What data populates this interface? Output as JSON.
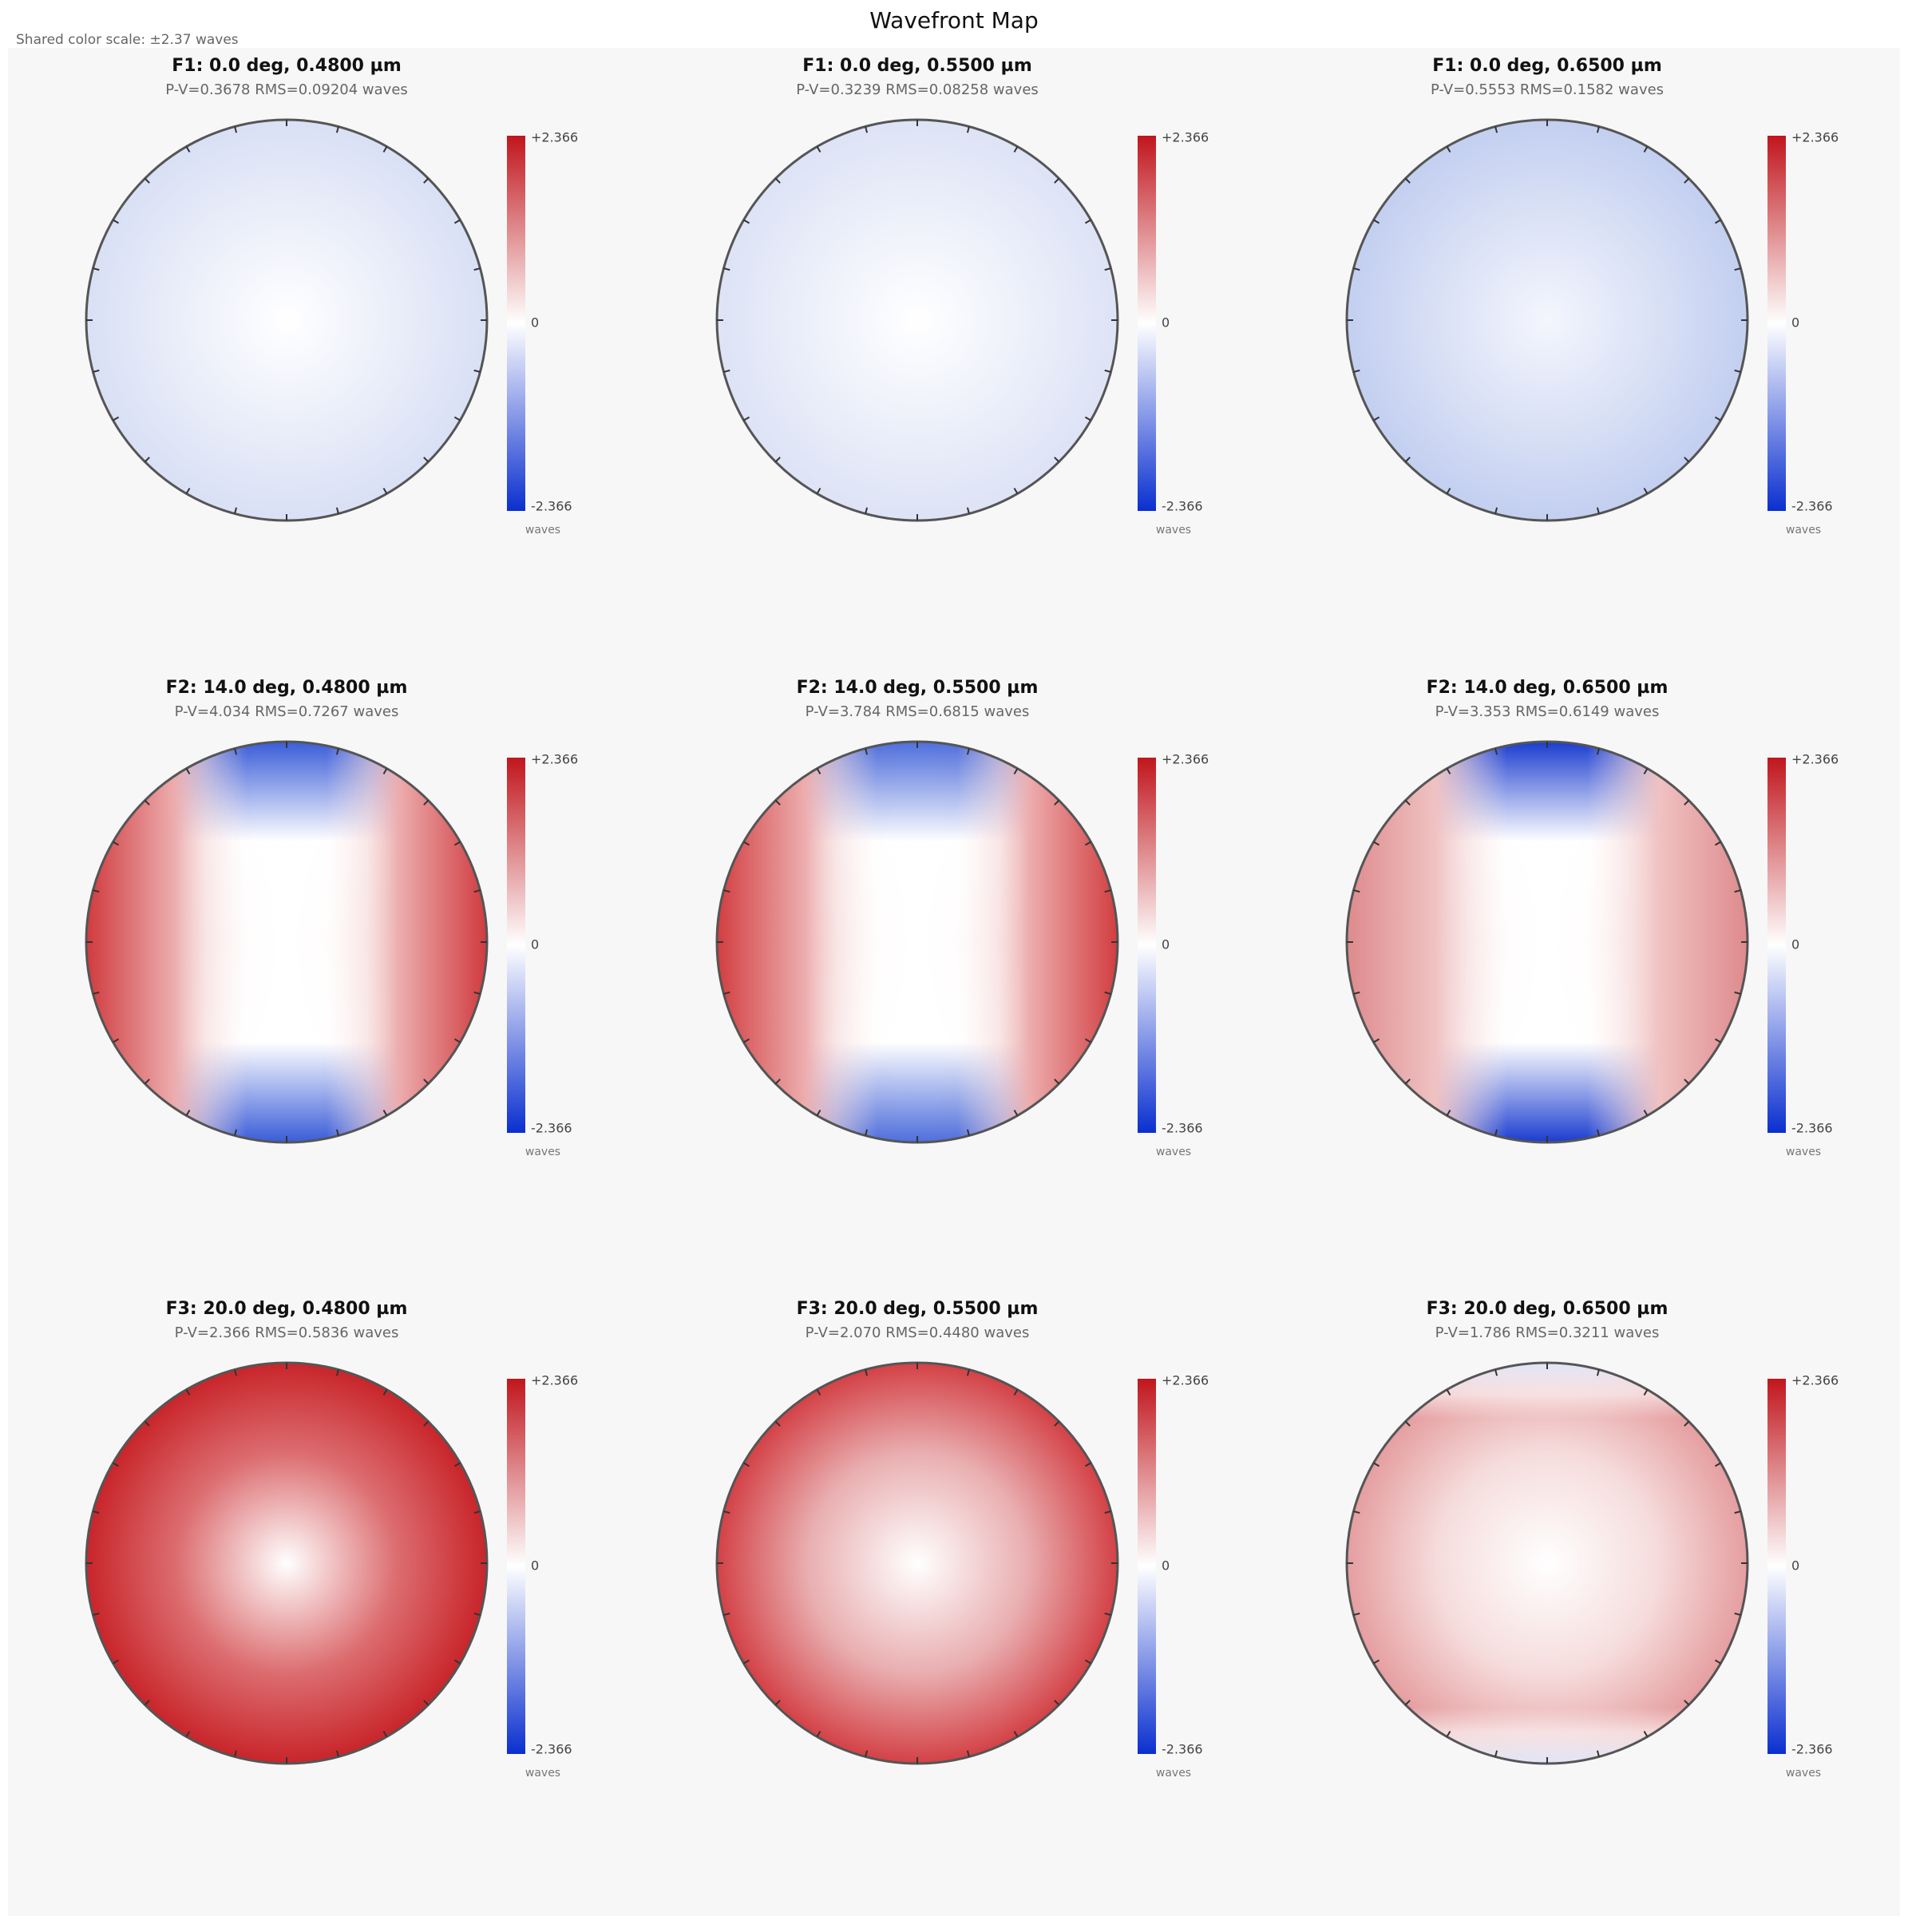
{
  "header": {
    "title": "Wavefront Map",
    "subtitle": "Shared color scale: ±2.37 waves"
  },
  "panels": [
    {
      "title": "F1: 0.0 deg, 0.4800 µm",
      "stats": "P-V=0.3678 RMS=0.09204 waves",
      "colorbar": {
        "max": "+2.366",
        "mid": "0",
        "min": "-2.366",
        "unit": "waves"
      }
    },
    {
      "title": "F1: 0.0 deg, 0.5500 µm",
      "stats": "P-V=0.3239 RMS=0.08258 waves",
      "colorbar": {
        "max": "+2.366",
        "mid": "0",
        "min": "-2.366",
        "unit": "waves"
      }
    },
    {
      "title": "F1: 0.0 deg, 0.6500 µm",
      "stats": "P-V=0.5553 RMS=0.1582 waves",
      "colorbar": {
        "max": "+2.366",
        "mid": "0",
        "min": "-2.366",
        "unit": "waves"
      }
    },
    {
      "title": "F2: 14.0 deg, 0.4800 µm",
      "stats": "P-V=4.034 RMS=0.7267 waves",
      "colorbar": {
        "max": "+2.366",
        "mid": "0",
        "min": "-2.366",
        "unit": "waves"
      }
    },
    {
      "title": "F2: 14.0 deg, 0.5500 µm",
      "stats": "P-V=3.784 RMS=0.6815 waves",
      "colorbar": {
        "max": "+2.366",
        "mid": "0",
        "min": "-2.366",
        "unit": "waves"
      }
    },
    {
      "title": "F2: 14.0 deg, 0.6500 µm",
      "stats": "P-V=3.353 RMS=0.6149 waves",
      "colorbar": {
        "max": "+2.366",
        "mid": "0",
        "min": "-2.366",
        "unit": "waves"
      }
    },
    {
      "title": "F3: 20.0 deg, 0.4800 µm",
      "stats": "P-V=2.366 RMS=0.5836 waves",
      "colorbar": {
        "max": "+2.366",
        "mid": "0",
        "min": "-2.366",
        "unit": "waves"
      }
    },
    {
      "title": "F3: 20.0 deg, 0.5500 µm",
      "stats": "P-V=2.070 RMS=0.4480 waves",
      "colorbar": {
        "max": "+2.366",
        "mid": "0",
        "min": "-2.366",
        "unit": "waves"
      }
    },
    {
      "title": "F3: 20.0 deg, 0.6500 µm",
      "stats": "P-V=1.786 RMS=0.3211 waves",
      "colorbar": {
        "max": "+2.366",
        "mid": "0",
        "min": "-2.366",
        "unit": "waves"
      }
    }
  ]
}
